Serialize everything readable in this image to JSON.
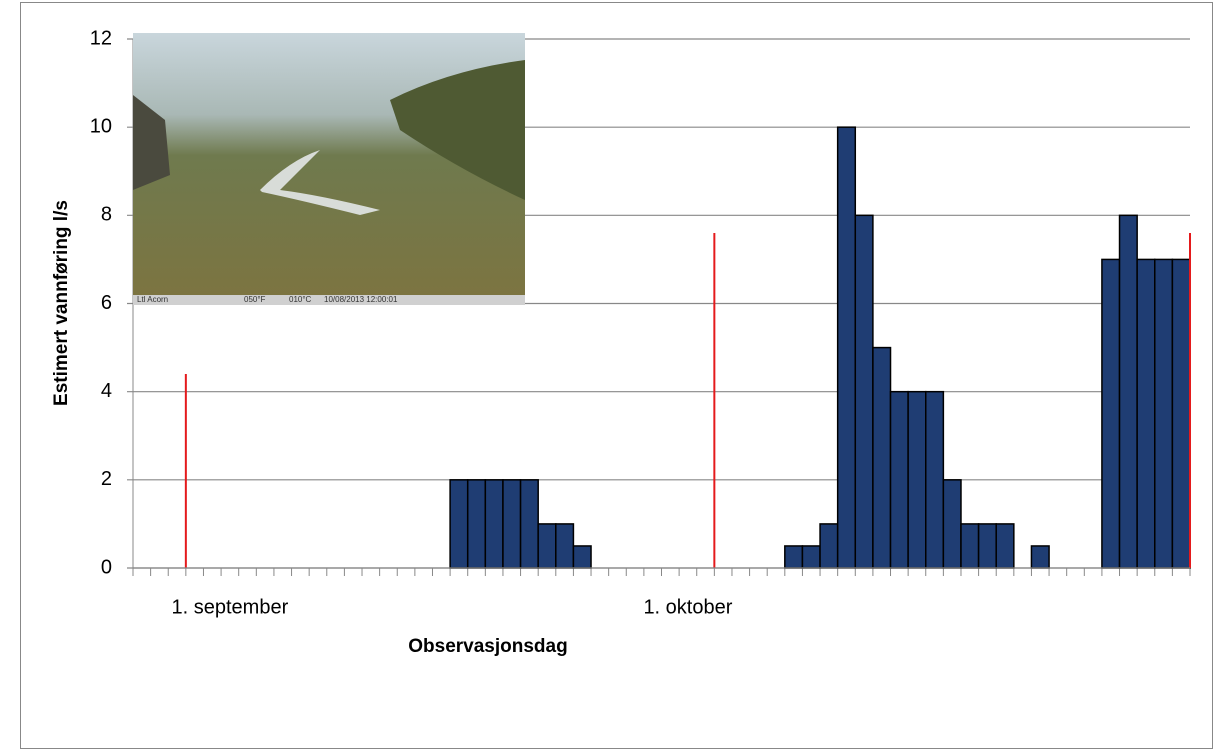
{
  "chart_data": {
    "type": "bar",
    "x_label": "Observasjonsdag",
    "y_label": "Estimert vannføring l/s",
    "categories": [
      null,
      null,
      null,
      null,
      null,
      "1. september",
      null,
      null,
      null,
      null,
      null,
      null,
      null,
      null,
      null,
      null,
      null,
      null,
      null,
      null,
      null,
      null,
      null,
      null,
      null,
      null,
      null,
      null,
      null,
      null,
      null,
      "1. oktober",
      null,
      null,
      null,
      null,
      null,
      null,
      null,
      null,
      null,
      null,
      null,
      null,
      null,
      null,
      null,
      null,
      null,
      null,
      null,
      null,
      null,
      null,
      null,
      null,
      null,
      null,
      null,
      null
    ],
    "values": [
      0,
      0,
      0,
      0,
      0,
      0,
      0,
      0,
      0,
      0,
      0,
      0,
      0,
      0,
      0,
      0,
      0,
      0,
      2,
      2,
      2,
      2,
      2,
      1,
      1,
      0.5,
      0,
      0,
      0,
      0,
      0,
      0,
      0,
      0,
      0,
      0,
      0,
      0.5,
      0.5,
      1,
      10,
      8,
      5,
      4,
      4,
      4,
      2,
      1,
      1,
      1,
      0,
      0.5,
      0,
      0,
      0,
      7,
      8,
      7,
      7,
      7
    ],
    "color": "#1f3d73",
    "vlines": [
      {
        "at": 3,
        "value": 4.4
      },
      {
        "at": 33,
        "value": 7.6
      },
      {
        "at": 60,
        "value": 7.6
      }
    ],
    "vline_color": "#e41a1c",
    "ylim": [
      0,
      12
    ],
    "yticks": [
      0,
      2,
      4,
      6,
      8,
      10,
      12
    ],
    "grid": true,
    "image_caption": [
      "Ltl Acorn",
      "050°F",
      "010°C",
      "10/08/2013 12:00:01"
    ]
  }
}
